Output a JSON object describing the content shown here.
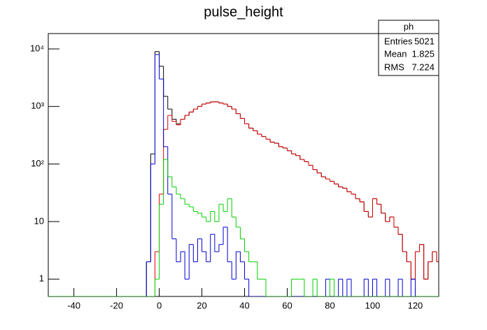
{
  "chart_data": {
    "type": "histogram",
    "title": "pulse_height",
    "log_y": true,
    "bins": [
      -52,
      -50,
      -48,
      -46,
      -44,
      -42,
      -40,
      -38,
      -36,
      -34,
      -32,
      -30,
      -28,
      -26,
      -24,
      -22,
      -20,
      -18,
      -16,
      -14,
      -12,
      -10,
      -8,
      -6,
      -4,
      -2,
      0,
      2,
      4,
      6,
      8,
      10,
      12,
      14,
      16,
      18,
      20,
      22,
      24,
      26,
      28,
      30,
      32,
      34,
      36,
      38,
      40,
      42,
      44,
      46,
      48,
      50,
      52,
      54,
      56,
      58,
      60,
      62,
      64,
      66,
      68,
      70,
      72,
      74,
      76,
      78,
      80,
      82,
      84,
      86,
      88,
      90,
      92,
      94,
      96,
      98,
      100,
      102,
      104,
      106,
      108,
      110,
      112,
      114,
      116,
      118,
      120,
      122,
      124,
      126,
      128,
      130,
      132
    ],
    "xlim": [
      -52,
      131
    ],
    "xticks": [
      -40,
      -20,
      0,
      20,
      40,
      60,
      80,
      100,
      120
    ],
    "ylim": [
      0.5,
      18500
    ],
    "yticks": [
      1,
      10,
      {
        "value": 100,
        "label": "10²"
      },
      {
        "value": 1000,
        "label": "10³"
      },
      {
        "value": 10000,
        "label": "10⁴"
      }
    ],
    "series": [
      {
        "color": "#000000",
        "values": [
          0,
          0,
          0,
          0,
          0,
          0,
          0,
          0,
          0,
          0,
          0,
          0,
          0,
          0,
          0,
          0,
          0,
          0,
          0,
          0,
          0,
          0,
          0,
          2,
          150,
          9000,
          5000,
          1500,
          900,
          600,
          500,
          600,
          700,
          800,
          900,
          1000,
          1100,
          1150,
          1200,
          1200,
          1150,
          1100,
          1000,
          900,
          750,
          620,
          500,
          420,
          380,
          330,
          300,
          270,
          240,
          230,
          200,
          190,
          170,
          150,
          140,
          120,
          110,
          95,
          80,
          70,
          60,
          55,
          50,
          45,
          40,
          38,
          33,
          30,
          25,
          22,
          15,
          12,
          25,
          20,
          14,
          10,
          12,
          8,
          6,
          3,
          2,
          1,
          3,
          4,
          1,
          2,
          3,
          2
        ]
      },
      {
        "color": "#e00000",
        "values": [
          0,
          0,
          0,
          0,
          0,
          0,
          0,
          0,
          0,
          0,
          0,
          0,
          0,
          0,
          0,
          0,
          0,
          0,
          0,
          0,
          0,
          0,
          0,
          0,
          0,
          3,
          30,
          400,
          700,
          550,
          480,
          600,
          700,
          800,
          900,
          1000,
          1100,
          1150,
          1200,
          1200,
          1150,
          1100,
          1000,
          900,
          750,
          620,
          500,
          420,
          380,
          330,
          300,
          270,
          240,
          230,
          200,
          190,
          170,
          150,
          140,
          120,
          110,
          95,
          80,
          70,
          60,
          55,
          50,
          45,
          40,
          38,
          33,
          30,
          25,
          22,
          15,
          12,
          25,
          20,
          14,
          10,
          12,
          8,
          6,
          3,
          2,
          1,
          3,
          4,
          1,
          2,
          3,
          2
        ]
      },
      {
        "color": "#0000d0",
        "values": [
          0,
          0,
          0,
          0,
          0,
          0,
          0,
          0,
          0,
          0,
          0,
          0,
          0,
          0,
          0,
          0,
          0,
          0,
          0,
          0,
          0,
          0,
          0,
          2,
          100,
          8000,
          3000,
          200,
          30,
          5,
          2,
          3,
          1,
          4,
          2,
          5,
          3,
          2,
          6,
          3,
          4,
          8,
          2,
          1,
          3,
          2,
          1,
          0,
          0,
          0,
          0,
          0,
          0,
          0,
          0,
          0,
          0,
          0,
          0,
          0,
          0,
          0,
          0,
          0,
          0,
          1,
          0,
          0,
          1,
          0,
          1,
          0,
          0,
          0,
          1,
          0,
          1,
          0,
          0,
          1,
          0,
          0,
          1,
          0,
          0,
          1,
          0,
          0,
          0,
          0,
          0,
          0
        ]
      },
      {
        "color": "#00d000",
        "values": [
          0,
          0,
          0,
          0,
          0,
          0,
          0,
          0,
          0,
          0,
          0,
          0,
          0,
          0,
          0,
          0,
          0,
          0,
          0,
          0,
          0,
          0,
          0,
          0,
          0,
          1,
          20,
          120,
          60,
          40,
          30,
          25,
          20,
          18,
          15,
          14,
          12,
          10,
          15,
          10,
          20,
          15,
          25,
          12,
          8,
          5,
          3,
          2,
          2,
          1,
          1,
          0,
          0,
          0,
          0,
          0,
          0,
          1,
          1,
          1,
          0,
          0,
          1,
          0,
          0,
          0,
          1,
          0,
          0,
          0,
          0,
          0,
          0,
          0,
          0,
          0,
          0,
          0,
          0,
          0,
          0,
          0,
          0,
          0,
          0,
          0,
          0,
          0,
          0,
          0,
          0,
          0
        ]
      }
    ]
  },
  "stats": {
    "title": "ph",
    "rows": [
      {
        "label": "Entries",
        "value": 5021
      },
      {
        "label": "Mean",
        "value": 1.825
      },
      {
        "label": "RMS",
        "value": 7.224
      }
    ]
  }
}
